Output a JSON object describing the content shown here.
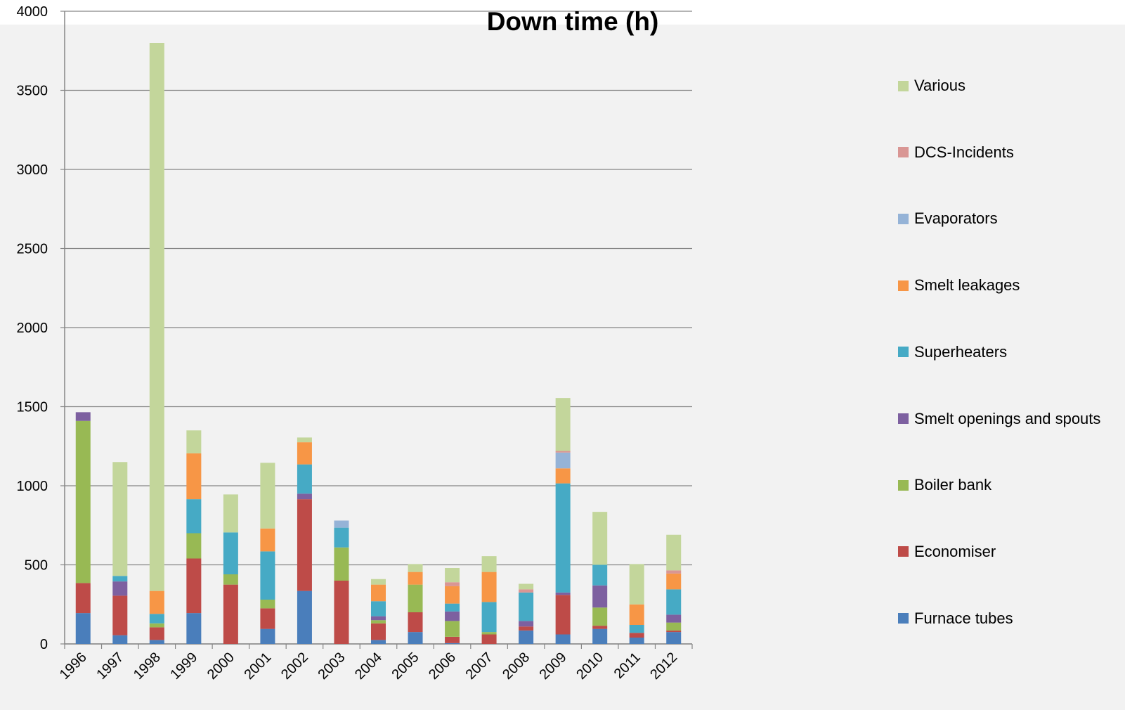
{
  "chart_data": {
    "type": "bar",
    "stacked": true,
    "title": "Down time (h)",
    "xlabel": "",
    "ylabel": "",
    "ylim": [
      0,
      4000
    ],
    "yticks": [
      0,
      500,
      1000,
      1500,
      2000,
      2500,
      3000,
      3500,
      4000
    ],
    "grid": true,
    "legend_position": "right",
    "categories": [
      "1996",
      "1997",
      "1998",
      "1999",
      "2000",
      "2001",
      "2002",
      "2003",
      "2004",
      "2005",
      "2006",
      "2007",
      "2008",
      "2009",
      "2010",
      "2011",
      "2012"
    ],
    "series": [
      {
        "name": "Furnace tubes",
        "color": "#4a7ebb",
        "values": [
          195,
          55,
          25,
          195,
          0,
          95,
          335,
          0,
          25,
          75,
          5,
          0,
          85,
          60,
          95,
          40,
          75
        ]
      },
      {
        "name": "Economiser",
        "color": "#be4b48",
        "values": [
          190,
          250,
          80,
          345,
          375,
          130,
          580,
          400,
          105,
          125,
          40,
          60,
          25,
          250,
          20,
          30,
          10
        ]
      },
      {
        "name": "Boiler bank",
        "color": "#98b954",
        "values": [
          1025,
          0,
          25,
          160,
          65,
          55,
          0,
          210,
          20,
          175,
          100,
          15,
          0,
          0,
          115,
          0,
          50
        ]
      },
      {
        "name": "Smelt openings and spouts",
        "color": "#7d60a0",
        "values": [
          55,
          90,
          0,
          0,
          0,
          0,
          35,
          0,
          25,
          0,
          60,
          0,
          35,
          15,
          140,
          0,
          50
        ]
      },
      {
        "name": "Superheaters",
        "color": "#46aac5",
        "values": [
          0,
          35,
          60,
          215,
          265,
          305,
          185,
          125,
          95,
          0,
          50,
          190,
          180,
          690,
          130,
          50,
          160
        ]
      },
      {
        "name": "Smelt leakages",
        "color": "#f79646",
        "values": [
          0,
          0,
          145,
          290,
          0,
          145,
          140,
          0,
          105,
          80,
          110,
          190,
          0,
          95,
          0,
          130,
          100
        ]
      },
      {
        "name": "Evaporators",
        "color": "#95b3d7",
        "values": [
          0,
          0,
          0,
          0,
          0,
          0,
          0,
          45,
          0,
          0,
          0,
          0,
          0,
          100,
          0,
          0,
          0
        ]
      },
      {
        "name": "DCS-Incidents",
        "color": "#d99694",
        "values": [
          0,
          0,
          0,
          0,
          0,
          0,
          0,
          0,
          0,
          0,
          25,
          0,
          20,
          10,
          0,
          0,
          20
        ]
      },
      {
        "name": "Various",
        "color": "#c3d69b",
        "values": [
          0,
          720,
          3465,
          145,
          240,
          415,
          30,
          0,
          35,
          50,
          90,
          100,
          35,
          335,
          335,
          255,
          225
        ]
      }
    ]
  }
}
